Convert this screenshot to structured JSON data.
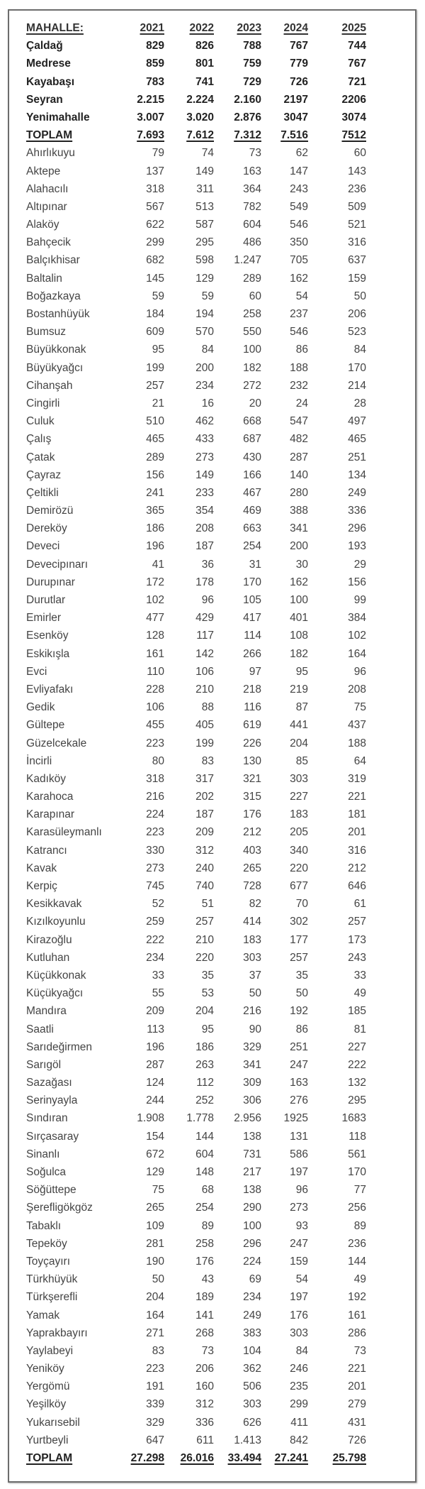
{
  "table": {
    "header": [
      "MAHALLE:",
      "2021",
      "2022",
      "2023",
      "2024",
      "2025"
    ],
    "center_rows": [
      [
        "Çaldağ",
        "829",
        "826",
        "788",
        "767",
        "744"
      ],
      [
        "Medrese",
        "859",
        "801",
        "759",
        "779",
        "767"
      ],
      [
        "Kayabaşı",
        "783",
        "741",
        "729",
        "726",
        "721"
      ],
      [
        "Seyran",
        "2.215",
        "2.224",
        "2.160",
        "2197",
        "2206"
      ],
      [
        "Yenimahalle",
        "3.007",
        "3.020",
        "2.876",
        "3047",
        "3074"
      ]
    ],
    "center_total": [
      "TOPLAM",
      "7.693",
      "7.612",
      "7.312",
      "7.516",
      "7512"
    ],
    "village_rows": [
      [
        "Ahırlıkuyu",
        "79",
        "74",
        "73",
        "62",
        "60"
      ],
      [
        "Aktepe",
        "137",
        "149",
        "163",
        "147",
        "143"
      ],
      [
        "Alahacılı",
        "318",
        "311",
        "364",
        "243",
        "236"
      ],
      [
        "Altıpınar",
        "567",
        "513",
        "782",
        "549",
        "509"
      ],
      [
        "Alaköy",
        "622",
        "587",
        "604",
        "546",
        "521"
      ],
      [
        "Bahçecik",
        "299",
        "295",
        "486",
        "350",
        "316"
      ],
      [
        "Balçıkhisar",
        "682",
        "598",
        "1.247",
        "705",
        "637"
      ],
      [
        "Baltalin",
        "145",
        "129",
        "289",
        "162",
        "159"
      ],
      [
        "Boğazkaya",
        "59",
        "59",
        "60",
        "54",
        "50"
      ],
      [
        "Bostanhüyük",
        "184",
        "194",
        "258",
        "237",
        "206"
      ],
      [
        "Bumsuz",
        "609",
        "570",
        "550",
        "546",
        "523"
      ],
      [
        "Büyükkonak",
        "95",
        "84",
        "100",
        "86",
        "84"
      ],
      [
        "Büyükyağcı",
        "199",
        "200",
        "182",
        "188",
        "170"
      ],
      [
        "Cihanşah",
        "257",
        "234",
        "272",
        "232",
        "214"
      ],
      [
        "Cingirli",
        "21",
        "16",
        "20",
        "24",
        "28"
      ],
      [
        "Culuk",
        "510",
        "462",
        "668",
        "547",
        "497"
      ],
      [
        "Çalış",
        "465",
        "433",
        "687",
        "482",
        "465"
      ],
      [
        "Çatak",
        "289",
        "273",
        "430",
        "287",
        "251"
      ],
      [
        "Çayraz",
        "156",
        "149",
        "166",
        "140",
        "134"
      ],
      [
        "Çeltikli",
        "241",
        "233",
        "467",
        "280",
        "249"
      ],
      [
        "Demirözü",
        "365",
        "354",
        "469",
        "388",
        "336"
      ],
      [
        "Dereköy",
        "186",
        "208",
        "663",
        "341",
        "296"
      ],
      [
        "Deveci",
        "196",
        "187",
        "254",
        "200",
        "193"
      ],
      [
        "Devecipınarı",
        "41",
        "36",
        "31",
        "30",
        "29"
      ],
      [
        "Durupınar",
        "172",
        "178",
        "170",
        "162",
        "156"
      ],
      [
        "Durutlar",
        "102",
        "96",
        "105",
        "100",
        "99"
      ],
      [
        "Emirler",
        "477",
        "429",
        "417",
        "401",
        "384"
      ],
      [
        "Esenköy",
        "128",
        "117",
        "114",
        "108",
        "102"
      ],
      [
        "Eskikışla",
        "161",
        "142",
        "266",
        "182",
        "164"
      ],
      [
        "Evci",
        "110",
        "106",
        "97",
        "95",
        "96"
      ],
      [
        "Evliyafakı",
        "228",
        "210",
        "218",
        "219",
        "208"
      ],
      [
        "Gedik",
        "106",
        "88",
        "116",
        "87",
        "75"
      ],
      [
        "Gültepe",
        "455",
        "405",
        "619",
        "441",
        "437"
      ],
      [
        "Güzelcekale",
        "223",
        "199",
        "226",
        "204",
        "188"
      ],
      [
        "İncirli",
        "80",
        "83",
        "130",
        "85",
        "64"
      ],
      [
        "Kadıköy",
        "318",
        "317",
        "321",
        "303",
        "319"
      ],
      [
        "Karahoca",
        "216",
        "202",
        "315",
        "227",
        "221"
      ],
      [
        "Karapınar",
        "224",
        "187",
        "176",
        "183",
        "181"
      ],
      [
        "Karasüleymanlı",
        "223",
        "209",
        "212",
        "205",
        "201"
      ],
      [
        "Katrancı",
        "330",
        "312",
        "403",
        "340",
        "316"
      ],
      [
        "Kavak",
        "273",
        "240",
        "265",
        "220",
        "212"
      ],
      [
        "Kerpiç",
        "745",
        "740",
        "728",
        "677",
        "646"
      ],
      [
        "Kesikkavak",
        "52",
        "51",
        "82",
        "70",
        "61"
      ],
      [
        "Kızılkoyunlu",
        "259",
        "257",
        "414",
        "302",
        "257"
      ],
      [
        "Kirazoğlu",
        "222",
        "210",
        "183",
        "177",
        "173"
      ],
      [
        "Kutluhan",
        "234",
        "220",
        "303",
        "257",
        "243"
      ],
      [
        "Küçükkonak",
        "33",
        "35",
        "37",
        "35",
        "33"
      ],
      [
        "Küçükyağcı",
        "55",
        "53",
        "50",
        "50",
        "49"
      ],
      [
        "Mandıra",
        "209",
        "204",
        "216",
        "192",
        "185"
      ],
      [
        "Saatli",
        "113",
        "95",
        "90",
        "86",
        "81"
      ],
      [
        "Sarıdeğirmen",
        "196",
        "186",
        "329",
        "251",
        "227"
      ],
      [
        "Sarıgöl",
        "287",
        "263",
        "341",
        "247",
        "222"
      ],
      [
        "Sazağası",
        "124",
        "112",
        "309",
        "163",
        "132"
      ],
      [
        "Serinyayla",
        "244",
        "252",
        "306",
        "276",
        "295"
      ],
      [
        "Sındıran",
        "1.908",
        "1.778",
        "2.956",
        "1925",
        "1683"
      ],
      [
        "Sırçasaray",
        "154",
        "144",
        "138",
        "131",
        "118"
      ],
      [
        "Sinanlı",
        "672",
        "604",
        "731",
        "586",
        "561"
      ],
      [
        "Soğulca",
        "129",
        "148",
        "217",
        "197",
        "170"
      ],
      [
        "Söğüttepe",
        "75",
        "68",
        "138",
        "96",
        "77"
      ],
      [
        "Şerefligökgöz",
        "265",
        "254",
        "290",
        "273",
        "256"
      ],
      [
        "Tabaklı",
        "109",
        "89",
        "100",
        "93",
        "89"
      ],
      [
        "Tepeköy",
        "281",
        "258",
        "296",
        "247",
        "236"
      ],
      [
        "Toyçayırı",
        "190",
        "176",
        "224",
        "159",
        "144"
      ],
      [
        "Türkhüyük",
        "50",
        "43",
        "69",
        "54",
        "49"
      ],
      [
        "Türkşerefli",
        "204",
        "189",
        "234",
        "197",
        "192"
      ],
      [
        "Yamak",
        "164",
        "141",
        "249",
        "176",
        "161"
      ],
      [
        "Yaprakbayırı",
        "271",
        "268",
        "383",
        "303",
        "286"
      ],
      [
        "Yaylabeyi",
        "83",
        "73",
        "104",
        "84",
        "73"
      ],
      [
        "Yeniköy",
        "223",
        "206",
        "362",
        "246",
        "221"
      ],
      [
        "Yergömü",
        "191",
        "160",
        "506",
        "235",
        "201"
      ],
      [
        "Yeşilköy",
        "339",
        "312",
        "303",
        "299",
        "279"
      ],
      [
        "Yukarısebil",
        "329",
        "336",
        "626",
        "411",
        "431"
      ],
      [
        "Yurtbeyli",
        "647",
        "611",
        "1.413",
        "842",
        "726"
      ]
    ],
    "village_total": [
      "TOPLAM",
      "27.298",
      "26.016",
      "33.494",
      "27.241",
      "25.798"
    ]
  }
}
